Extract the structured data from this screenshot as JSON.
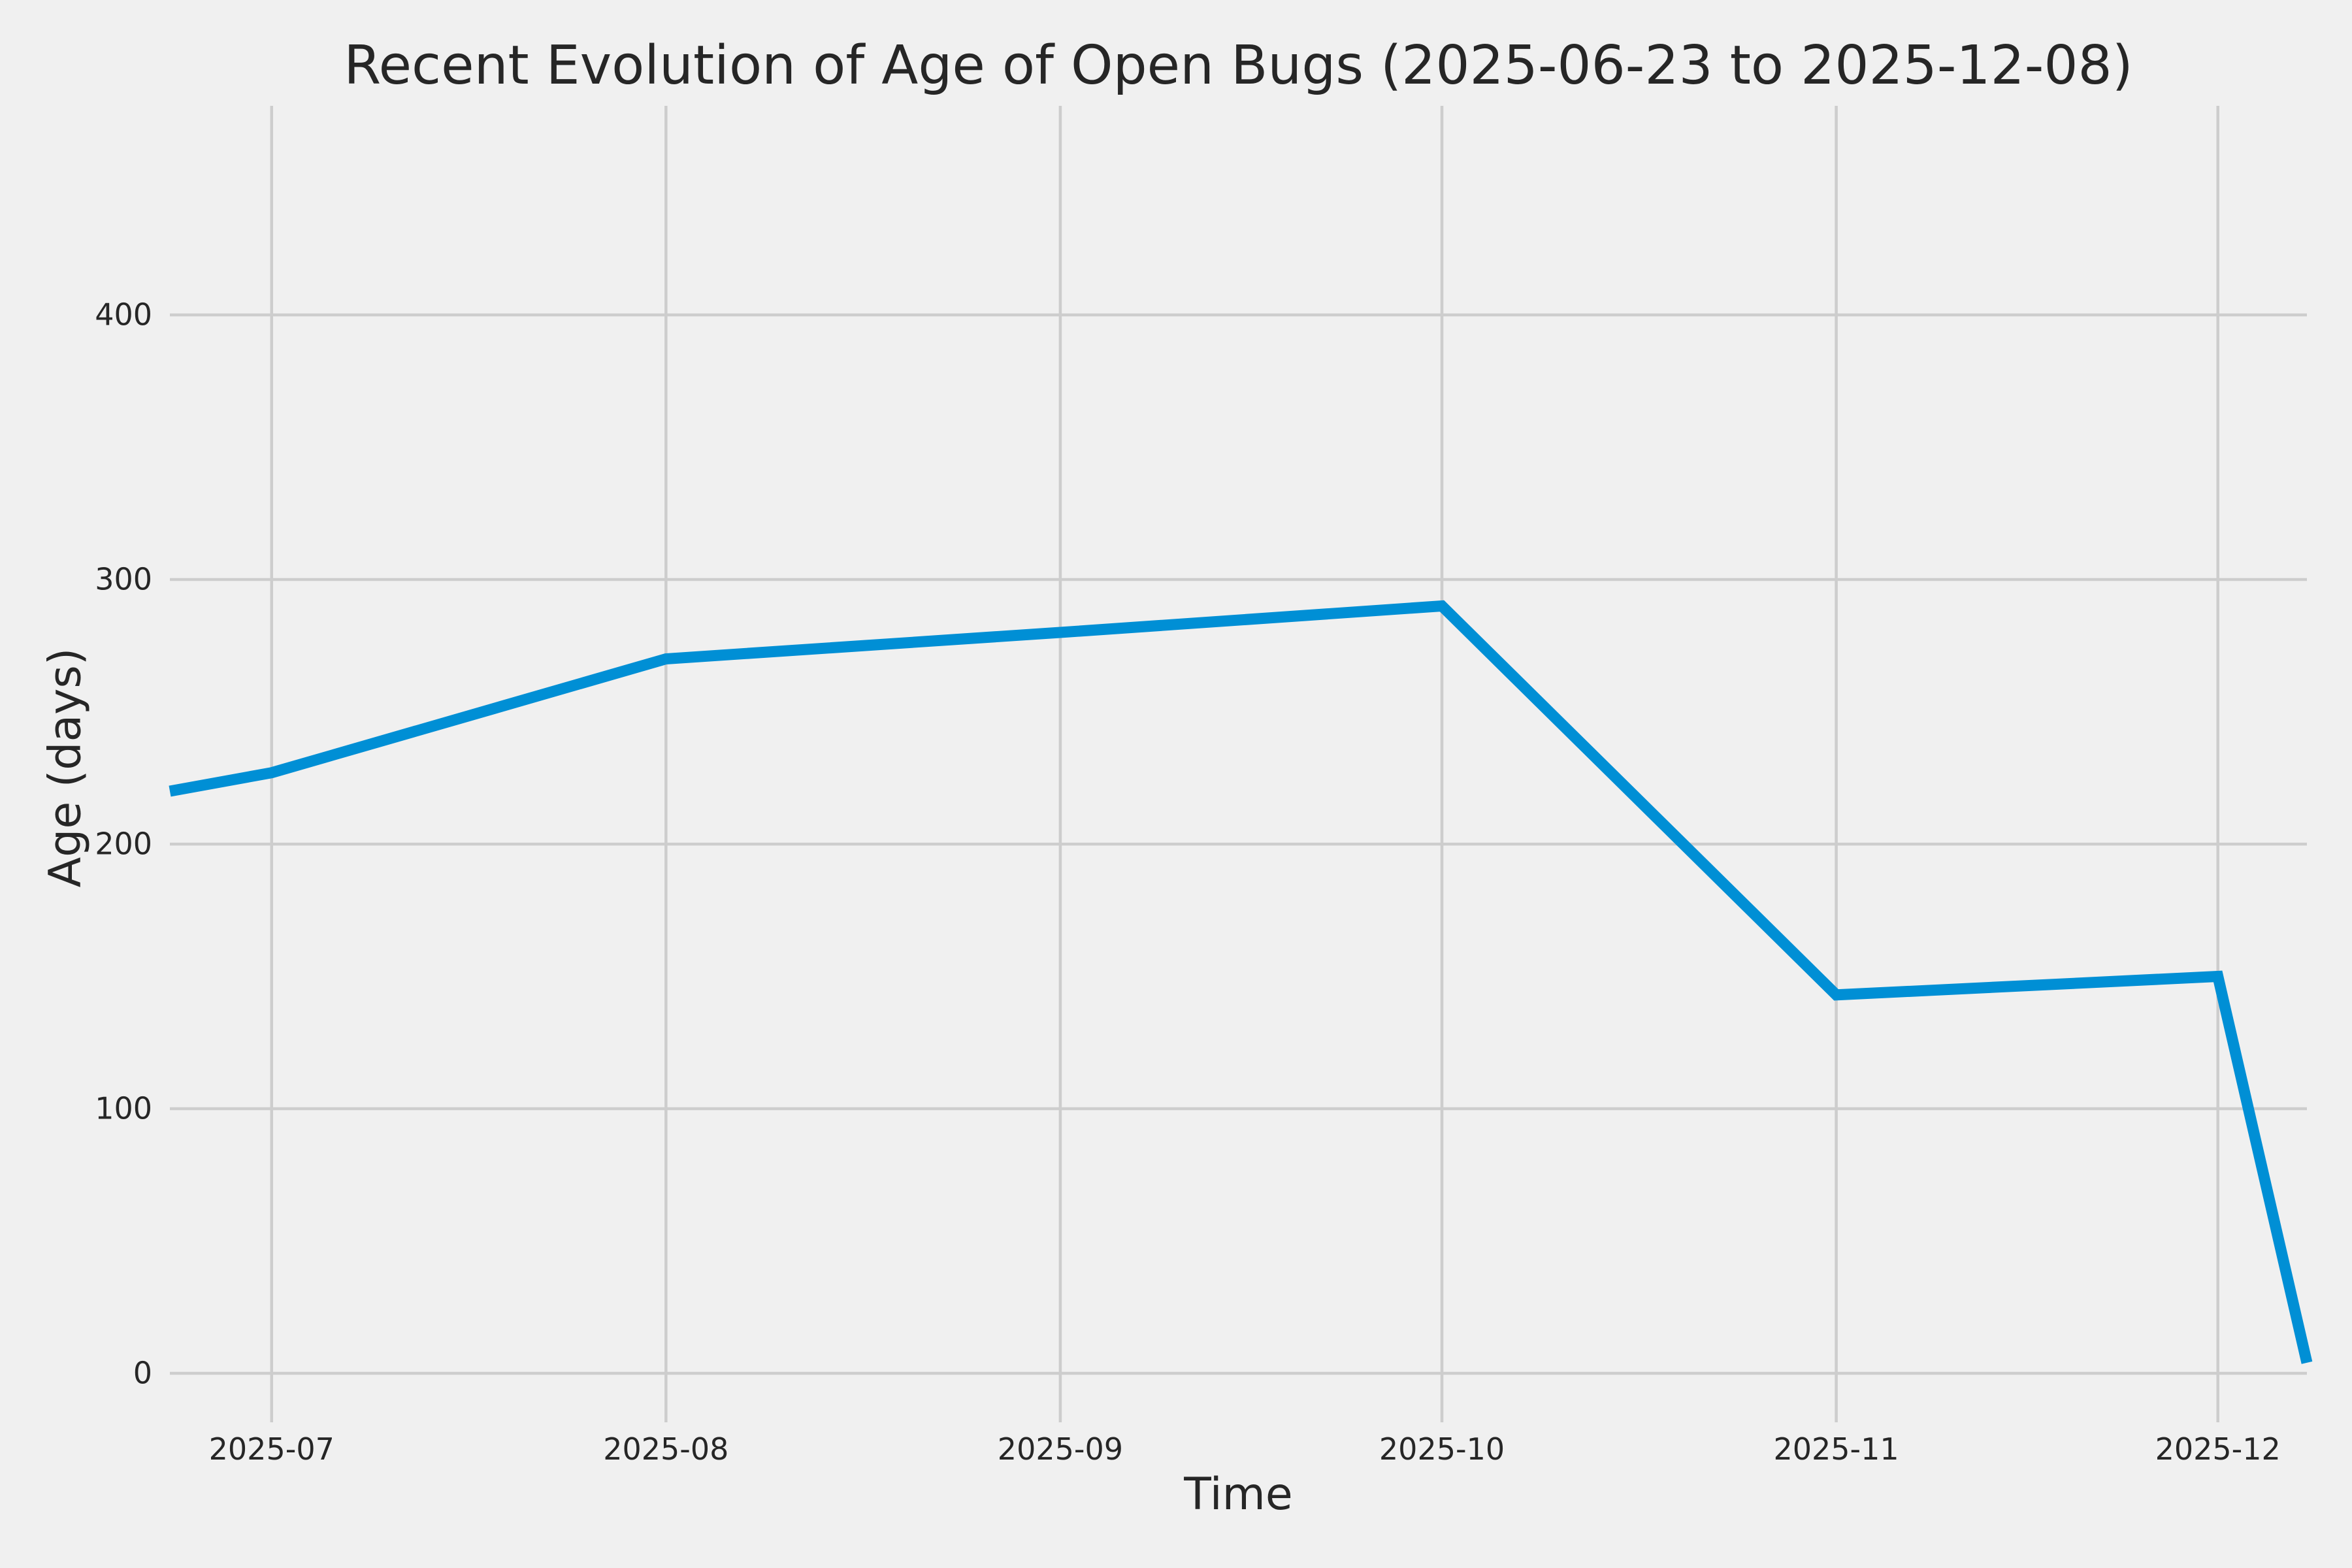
{
  "colors": {
    "background": "#f0f0f0",
    "grid": "#cdcdcd",
    "line": "#008fd5",
    "text": "#262626"
  },
  "chart_data": {
    "type": "line",
    "title": "Recent Evolution of Age of Open Bugs (2025-06-23 to 2025-12-08)",
    "xlabel": "Time",
    "ylabel": "Age (days)",
    "grid": true,
    "legend": false,
    "xlim": [
      "2025-06-23",
      "2025-12-08"
    ],
    "ylim": [
      -18,
      479
    ],
    "x_ticks": [
      {
        "label": "2025-07",
        "date": "2025-07-01"
      },
      {
        "label": "2025-08",
        "date": "2025-08-01"
      },
      {
        "label": "2025-09",
        "date": "2025-09-01"
      },
      {
        "label": "2025-10",
        "date": "2025-10-01"
      },
      {
        "label": "2025-11",
        "date": "2025-11-01"
      },
      {
        "label": "2025-12",
        "date": "2025-12-01"
      }
    ],
    "y_ticks": [
      {
        "value": 0,
        "label": "0"
      },
      {
        "value": 100,
        "label": "100"
      },
      {
        "value": 200,
        "label": "200"
      },
      {
        "value": 300,
        "label": "300"
      },
      {
        "value": 400,
        "label": "400"
      }
    ],
    "series": [
      {
        "points": [
          {
            "date": "2025-06-23",
            "value": 220
          },
          {
            "date": "2025-07-01",
            "value": 227
          },
          {
            "date": "2025-08-01",
            "value": 270
          },
          {
            "date": "2025-09-01",
            "value": 280
          },
          {
            "date": "2025-10-01",
            "value": 290
          },
          {
            "date": "2025-11-01",
            "value": 143
          },
          {
            "date": "2025-12-01",
            "value": 150
          },
          {
            "date": "2025-12-08",
            "value": 4
          }
        ]
      }
    ]
  }
}
